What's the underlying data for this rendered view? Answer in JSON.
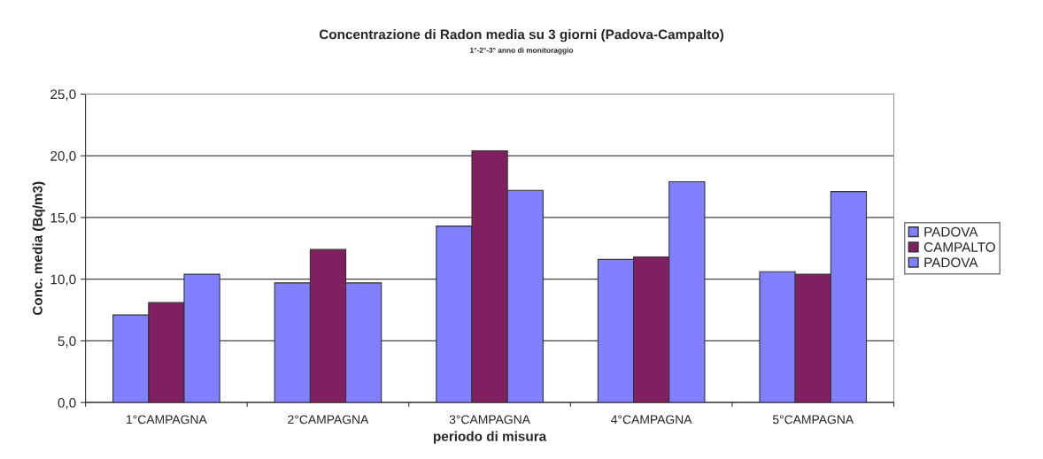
{
  "chart_data": {
    "type": "bar",
    "title": "Concentrazione di Radon media su 3 giorni (Padova-Campalto)",
    "subtitle": "1°-2°-3° anno di monitoraggio",
    "xlabel": "periodo di misura",
    "ylabel": "Conc. media (Bq/m3)",
    "categories": [
      "1°CAMPAGNA",
      "2°CAMPAGNA",
      "3°CAMPAGNA",
      "4°CAMPAGNA",
      "5°CAMPAGNA"
    ],
    "series": [
      {
        "name": "PADOVA",
        "color": "#8080ff",
        "values": [
          7.1,
          9.7,
          14.3,
          11.6,
          10.6
        ]
      },
      {
        "name": "CAMPALTO",
        "color": "#802060",
        "values": [
          8.1,
          12.4,
          20.4,
          11.8,
          10.4
        ]
      },
      {
        "name": "PADOVA",
        "color": "#8080ff",
        "values": [
          10.4,
          9.7,
          17.2,
          17.9,
          17.1
        ]
      }
    ],
    "ylim": [
      0,
      25
    ],
    "yticks": [
      {
        "value": 0,
        "label": "0,0"
      },
      {
        "value": 5,
        "label": "5,0"
      },
      {
        "value": 10,
        "label": "10,0"
      },
      {
        "value": 15,
        "label": "15,0"
      },
      {
        "value": 20,
        "label": "20,0"
      },
      {
        "value": 25,
        "label": "25,0"
      }
    ],
    "grid": "y",
    "legend": "right"
  }
}
